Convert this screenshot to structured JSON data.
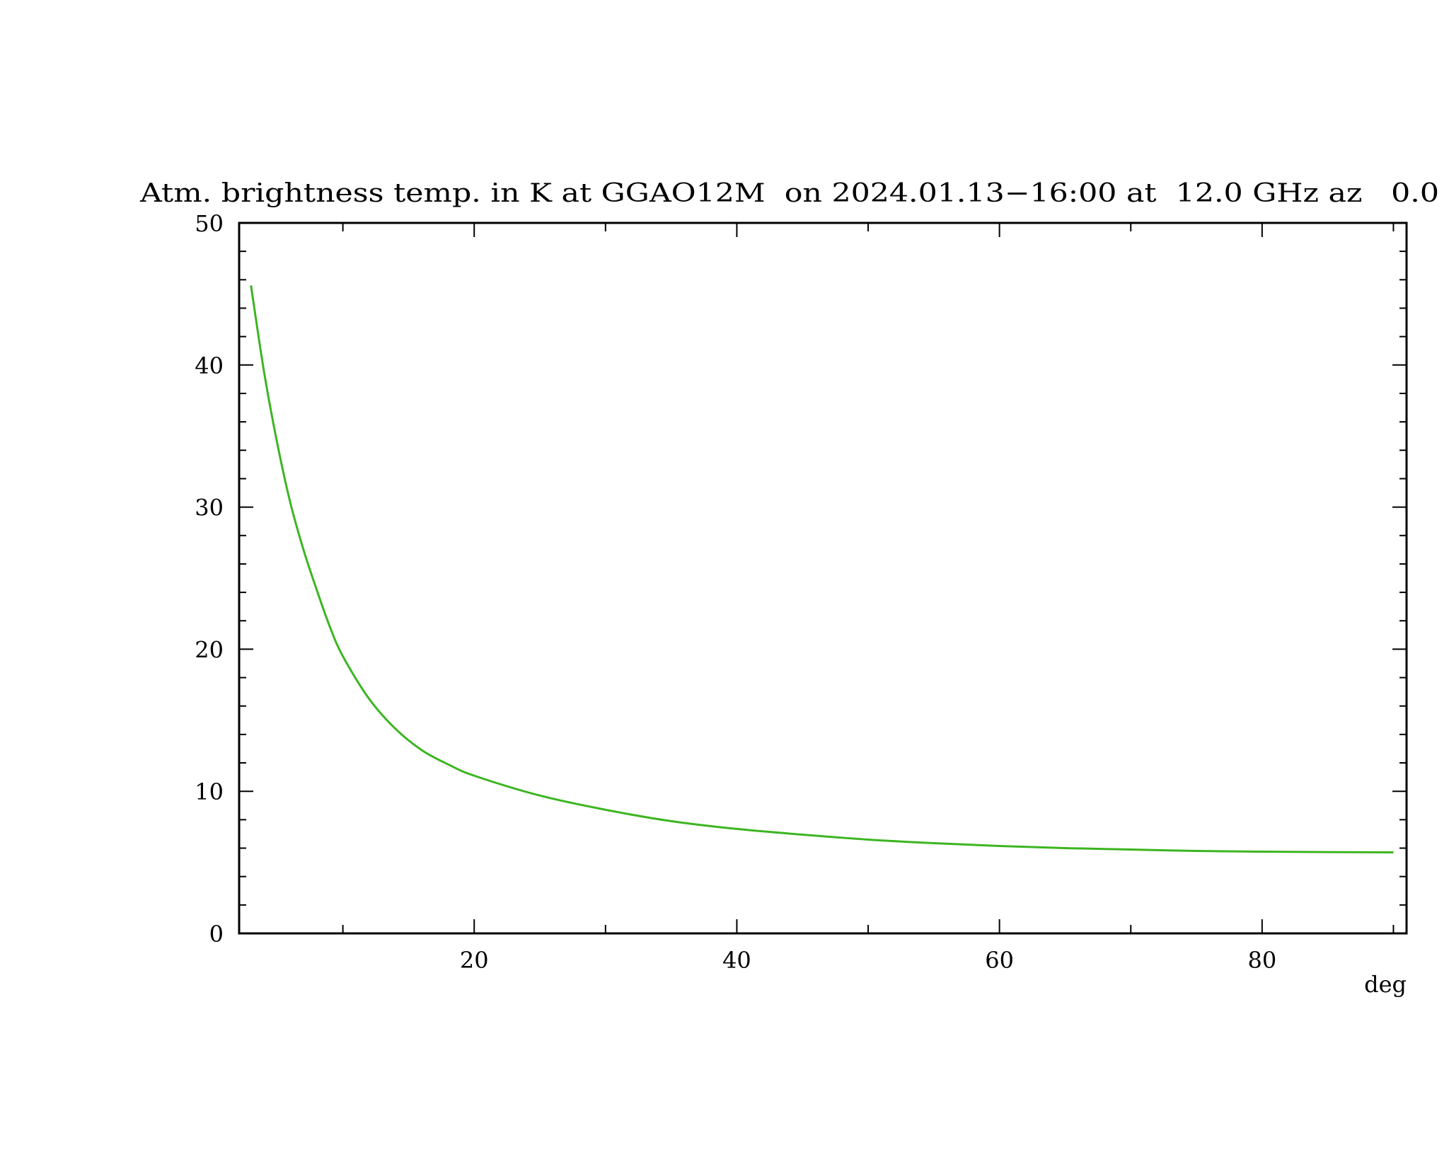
{
  "chart_data": {
    "type": "line",
    "title": "Atm. brightness temp. in K at GGAO12M  on 2024.01.13−16:00 at  12.0 GHz az   0.0",
    "xlabel": "deg",
    "ylabel": "",
    "xlim": [
      2.1,
      91
    ],
    "ylim": [
      0,
      50
    ],
    "x_ticks": [
      20,
      40,
      60,
      80
    ],
    "x_tick_labels": [
      "20",
      "40",
      "60",
      "80"
    ],
    "x_minor_ticks": [
      10,
      30,
      50,
      70,
      90
    ],
    "y_ticks": [
      0,
      10,
      20,
      30,
      40,
      50
    ],
    "y_tick_labels": [
      "0",
      "10",
      "20",
      "30",
      "40",
      "50"
    ],
    "y_minor_step": 2,
    "grid": false,
    "series": [
      {
        "color": "#3cb521",
        "x": [
          3,
          4,
          5,
          6,
          7,
          8,
          9,
          10,
          12,
          14,
          16,
          18,
          20,
          25,
          30,
          35,
          40,
          45,
          50,
          55,
          60,
          65,
          70,
          75,
          80,
          85,
          90
        ],
        "y": [
          45.6,
          39.5,
          34.5,
          30.3,
          27.0,
          24.2,
          21.6,
          19.5,
          16.5,
          14.4,
          12.9,
          11.9,
          11.1,
          9.7,
          8.7,
          7.9,
          7.35,
          6.95,
          6.6,
          6.35,
          6.15,
          6.0,
          5.9,
          5.8,
          5.75,
          5.72,
          5.7
        ]
      }
    ]
  }
}
